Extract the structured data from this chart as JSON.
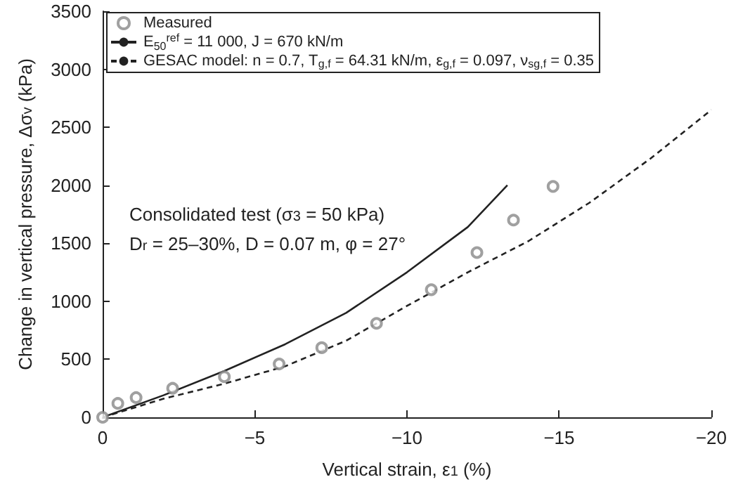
{
  "chart_data": {
    "type": "line",
    "xlabel": "Vertical strain, ε$_{1}$ (%)",
    "ylabel": "Change in vertical pressure, Δσ$_{v}$ (kPa)",
    "annotations": [
      "Consolidated test (σ$_{3}$ = 50 kPa)",
      "D$_{r}$ = 25–30%, D = 0.07 m, φ = 27°"
    ],
    "xlim": [
      0,
      -20
    ],
    "ylim": [
      0,
      3500
    ],
    "xticks": [
      0,
      {
        "value": -5,
        "label": "−5"
      },
      {
        "value": -10,
        "label": "−10"
      },
      {
        "value": -15,
        "label": "−15"
      },
      {
        "value": -20,
        "label": "−20"
      }
    ],
    "yticks": [
      0,
      500,
      1000,
      1500,
      2000,
      2500,
      3000,
      3500
    ],
    "grid": false,
    "legend": "top",
    "series": [
      {
        "name": "Measured",
        "type": "scatter",
        "marker": "circle",
        "color": "#888888",
        "x": [
          0,
          -0.5,
          -1.1,
          -2.3,
          -4.0,
          -5.8,
          -7.2,
          -9.0,
          -10.8,
          -12.3,
          -13.5,
          -14.8
        ],
        "values": [
          0,
          120,
          170,
          250,
          350,
          460,
          600,
          810,
          1100,
          1420,
          1700,
          1990
        ]
      },
      {
        "name": "E$_{50}$$^{ref}$ = 11 000, J = 670 kN/m",
        "line_style": "solid",
        "color": "#222222",
        "x": [
          0,
          -2,
          -4,
          -6,
          -8,
          -10,
          -12,
          -13.3
        ],
        "values": [
          0,
          190,
          400,
          630,
          900,
          1250,
          1640,
          2000
        ]
      },
      {
        "name": "GESAC model: n = 0.7, T$_{g,f}$ = 64.31 kN/m, ε$_{g,f}$ = 0.097, ν$_{sg,f}$ = 0.35",
        "line_style": "dashed",
        "color": "#222222",
        "x": [
          0,
          -2,
          -4,
          -6,
          -8,
          -10,
          -12,
          -14,
          -16,
          -18,
          -20
        ],
        "values": [
          0,
          160,
          290,
          440,
          660,
          960,
          1250,
          1520,
          1850,
          2230,
          2650
        ]
      }
    ]
  }
}
